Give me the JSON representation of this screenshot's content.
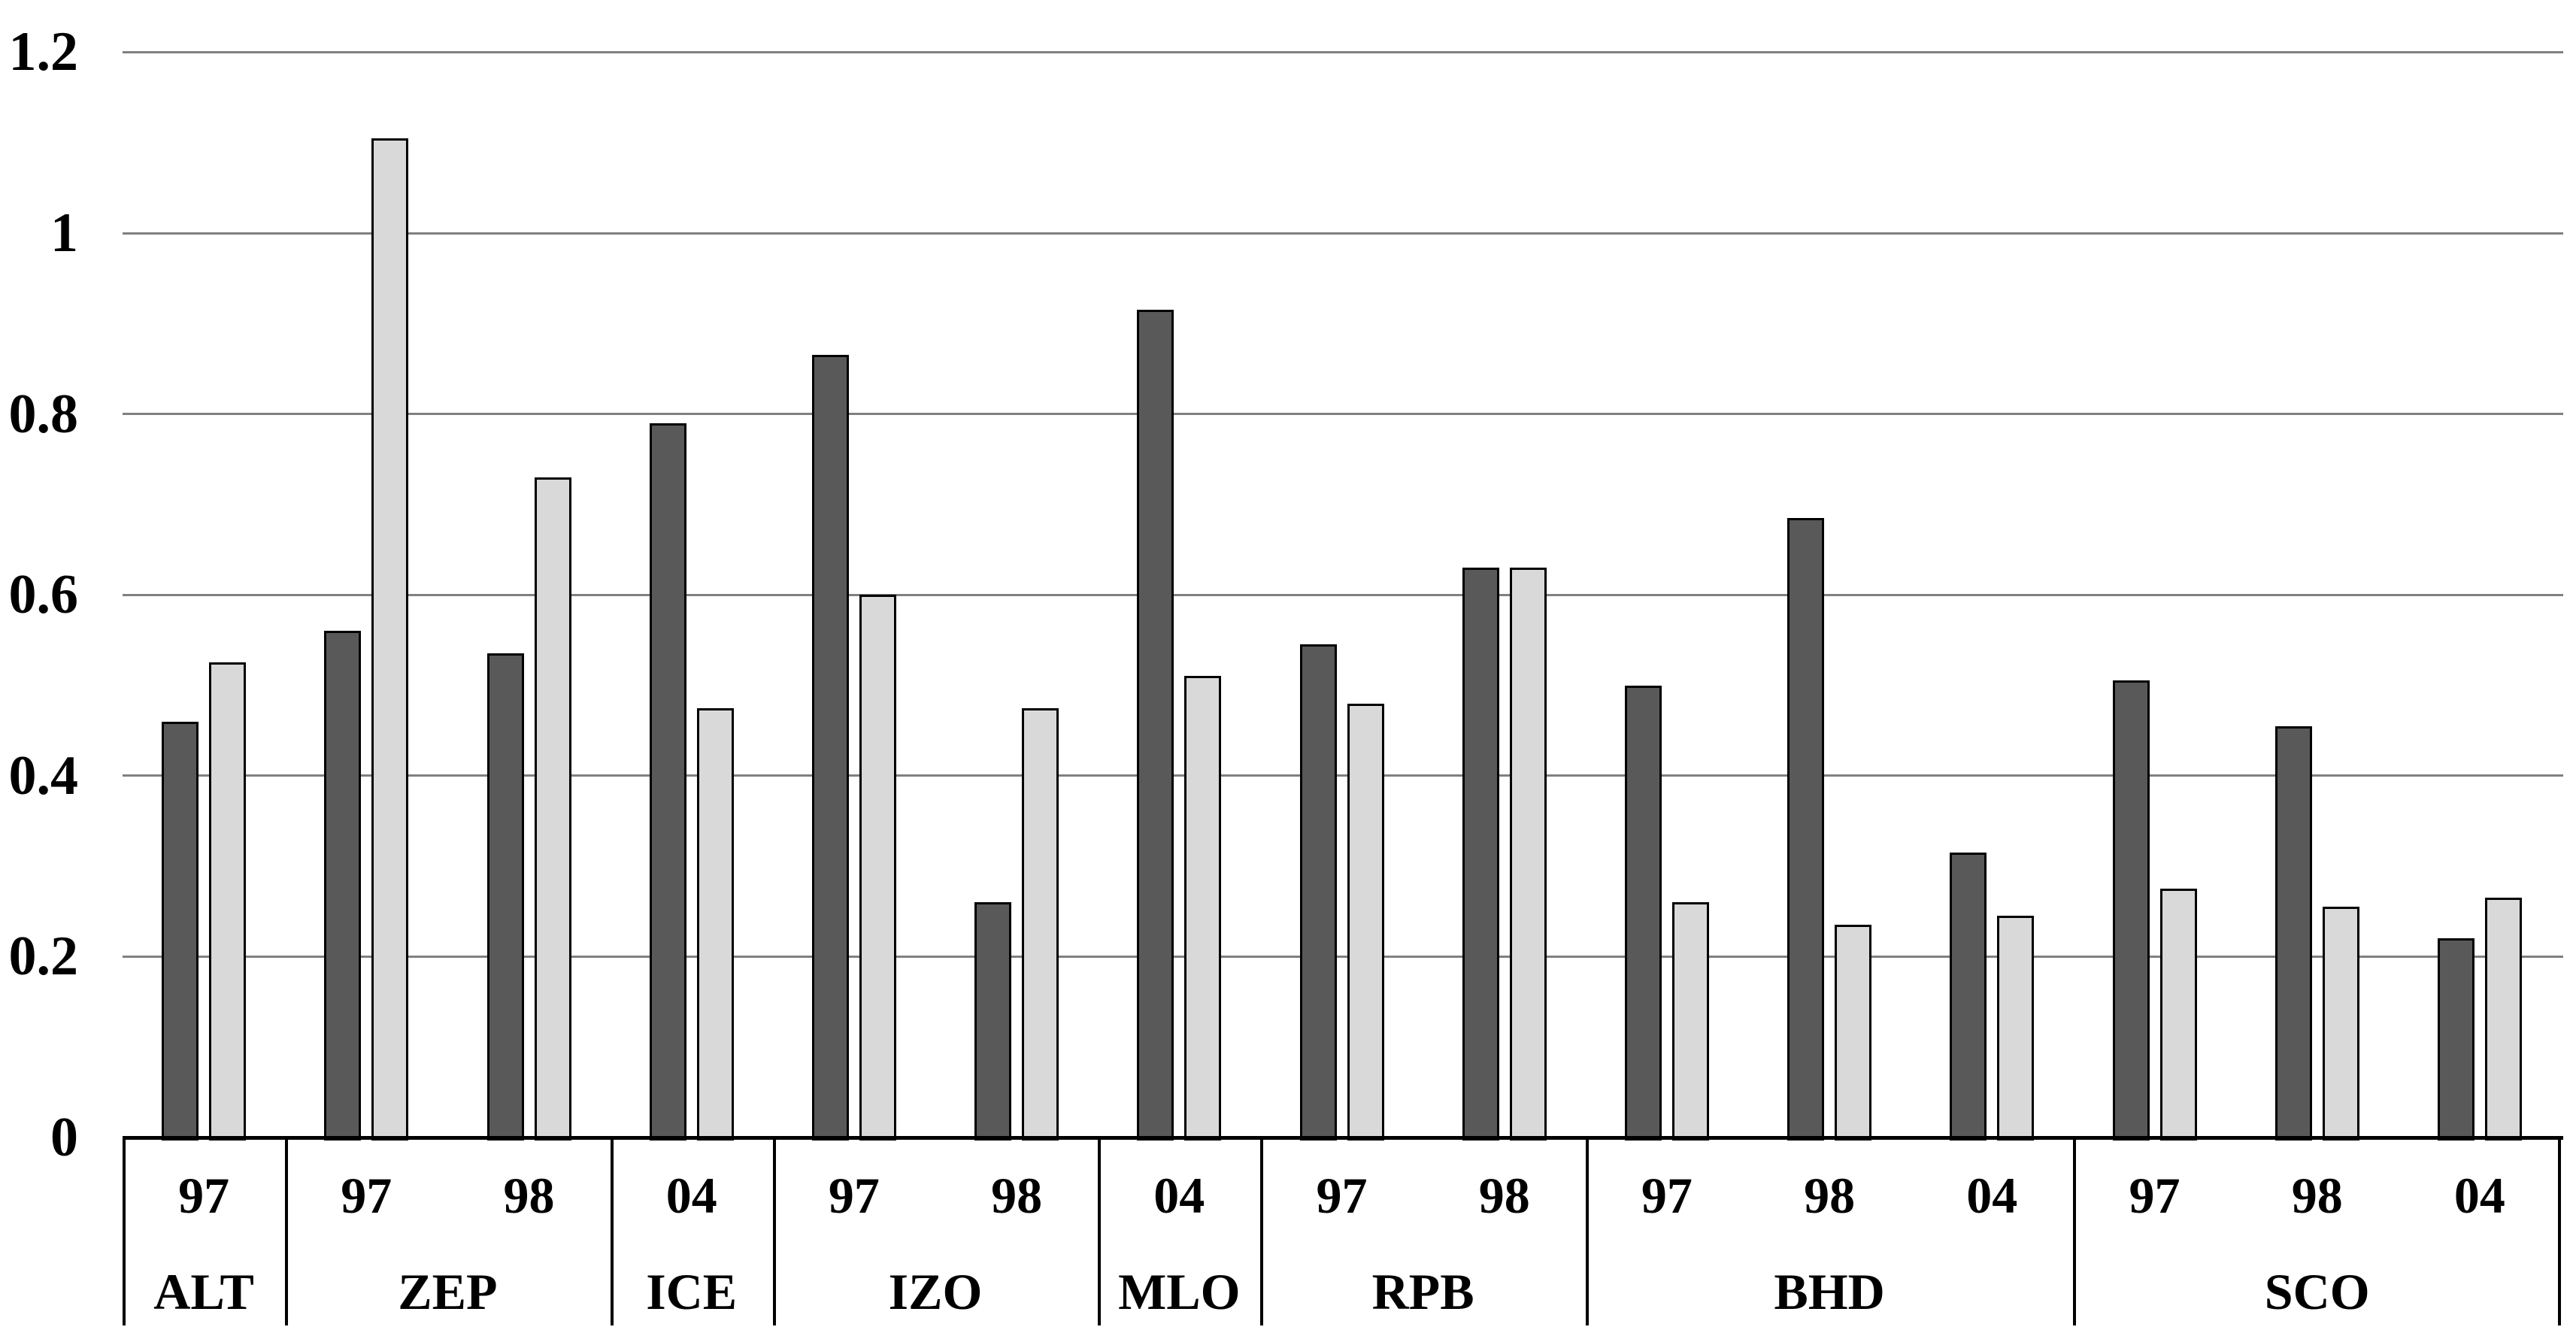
{
  "chart_data": {
    "type": "bar",
    "title": "",
    "xlabel": "",
    "ylabel": "",
    "ylim": [
      0,
      1.2
    ],
    "ytick_labels": [
      "0",
      "0.2",
      "0.4",
      "0.6",
      "0.8",
      "1",
      "1.2"
    ],
    "ytick_values": [
      0,
      0.2,
      0.4,
      0.6,
      0.8,
      1,
      1.2
    ],
    "grid": true,
    "legend": false,
    "categories": [
      "97",
      "97",
      "98",
      "04",
      "97",
      "98",
      "04",
      "97",
      "98",
      "97",
      "98",
      "04",
      "97",
      "98",
      "04"
    ],
    "station_groups": [
      {
        "label": "ALT",
        "span": 1
      },
      {
        "label": "ZEP",
        "span": 2
      },
      {
        "label": "ICE",
        "span": 1
      },
      {
        "label": "IZO",
        "span": 2
      },
      {
        "label": "MLO",
        "span": 1
      },
      {
        "label": "RPB",
        "span": 2
      },
      {
        "label": "BHD",
        "span": 3
      },
      {
        "label": "SCO",
        "span": 3
      }
    ],
    "series": [
      {
        "name": "dark",
        "color": "#595959",
        "values": [
          0.46,
          0.56,
          0.535,
          0.79,
          0.865,
          0.26,
          0.915,
          0.545,
          0.63,
          0.5,
          0.685,
          0.315,
          0.505,
          0.455,
          0.22
        ]
      },
      {
        "name": "light",
        "color": "#d9d9d9",
        "values": [
          0.525,
          1.105,
          0.73,
          0.475,
          0.6,
          0.475,
          0.51,
          0.48,
          0.63,
          0.26,
          0.235,
          0.245,
          0.275,
          0.255,
          0.265
        ]
      }
    ]
  },
  "colors": {
    "background": "#ffffff",
    "gridline": "#808080",
    "bar_border": "#000000",
    "axis_line": "#000000",
    "text": "#000000"
  }
}
